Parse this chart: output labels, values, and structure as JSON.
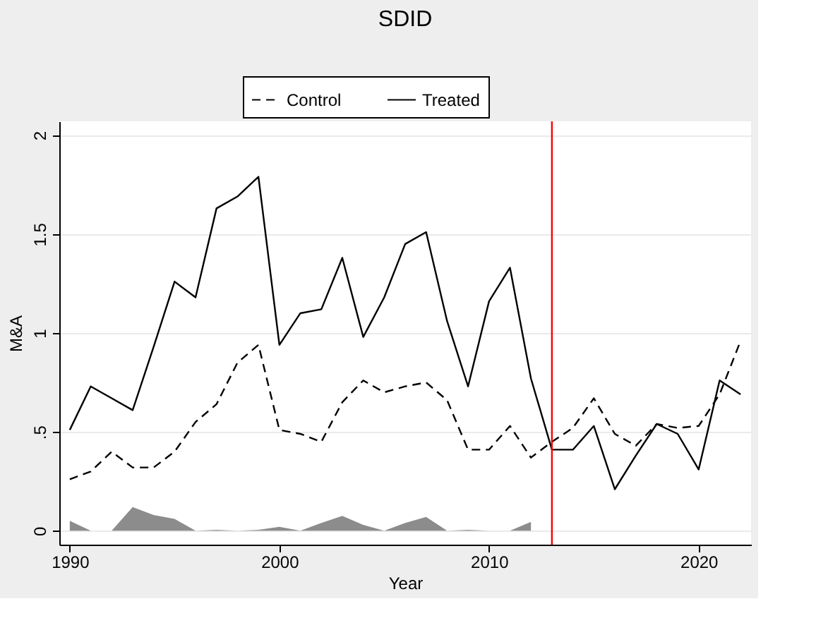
{
  "chart_data": {
    "type": "line",
    "title": "SDID",
    "xlabel": "Year",
    "ylabel": "M&A",
    "x": [
      1990,
      1991,
      1992,
      1993,
      1994,
      1995,
      1996,
      1997,
      1998,
      1999,
      2000,
      2001,
      2002,
      2003,
      2004,
      2005,
      2006,
      2007,
      2008,
      2009,
      2010,
      2011,
      2012,
      2013,
      2014,
      2015,
      2016,
      2017,
      2018,
      2019,
      2020,
      2021,
      2022
    ],
    "series": [
      {
        "name": "Control",
        "color": "#000000",
        "line_style": "dashed",
        "values": [
          0.26,
          0.3,
          0.4,
          0.32,
          0.32,
          0.4,
          0.55,
          0.64,
          0.85,
          0.94,
          0.51,
          0.49,
          0.45,
          0.65,
          0.76,
          0.7,
          0.73,
          0.75,
          0.66,
          0.41,
          0.41,
          0.53,
          0.37,
          0.45,
          0.52,
          0.67,
          0.49,
          0.43,
          0.54,
          0.52,
          0.53,
          0.69,
          0.96
        ]
      },
      {
        "name": "Treated",
        "color": "#000000",
        "line_style": "solid",
        "values": [
          0.51,
          0.73,
          0.67,
          0.61,
          0.93,
          1.26,
          1.18,
          1.63,
          1.69,
          1.79,
          0.94,
          1.1,
          1.12,
          1.38,
          0.98,
          1.18,
          1.45,
          1.51,
          1.06,
          0.73,
          1.16,
          1.33,
          0.77,
          0.41,
          0.41,
          0.53,
          0.21,
          0.38,
          0.54,
          0.49,
          0.31,
          0.76,
          0.69
        ]
      },
      {
        "type": "area",
        "color": "#8c8c8c",
        "x": [
          1990,
          1991,
          1992,
          1993,
          1994,
          1995,
          1996,
          1997,
          1998,
          1999,
          2000,
          2001,
          2002,
          2003,
          2004,
          2005,
          2006,
          2007,
          2008,
          2009,
          2010,
          2011,
          2012
        ],
        "values": [
          0.05,
          0,
          0,
          0.12,
          0.08,
          0.06,
          0,
          0.005,
          0,
          0.005,
          0.02,
          0,
          0.04,
          0.075,
          0.03,
          0,
          0.04,
          0.07,
          0,
          0.005,
          0,
          0,
          0.045
        ]
      }
    ],
    "ref_lines": [
      {
        "axis": "x",
        "value": 2013,
        "color": "#ff0000"
      }
    ],
    "xlim": [
      1989.5,
      2022.5
    ],
    "xticks": [
      1990,
      2000,
      2010,
      2020
    ],
    "ylim": [
      -0.07,
      2.07
    ],
    "yticks": [
      0,
      {
        "value": 0.5,
        "label": ".5"
      },
      1,
      1.5,
      2
    ],
    "grid": "y",
    "legend": "top"
  }
}
